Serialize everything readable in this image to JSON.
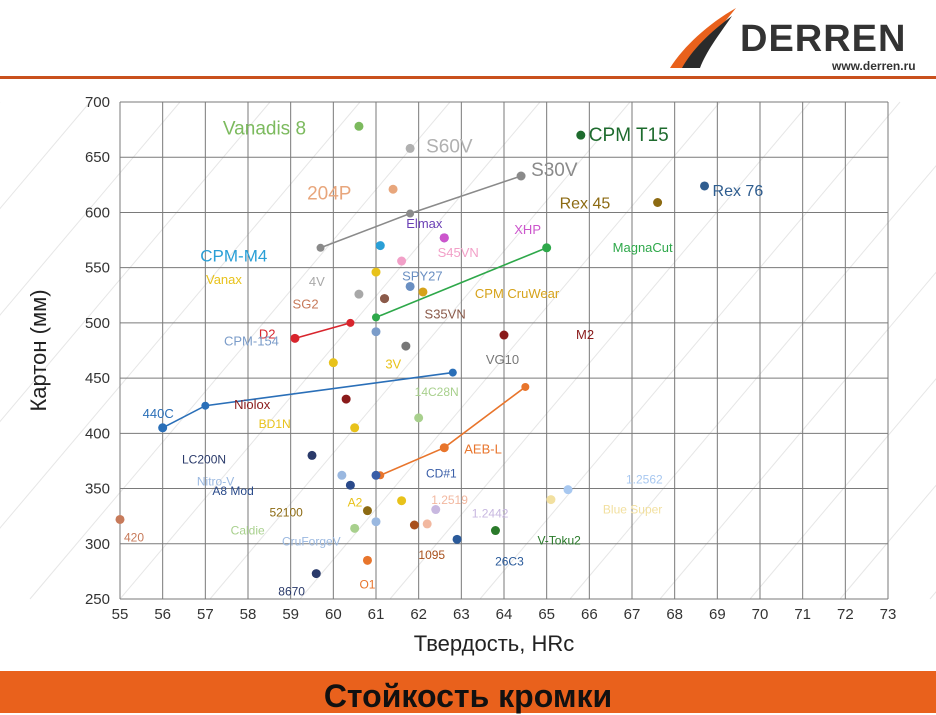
{
  "brand": {
    "name": "DERREN",
    "url": "www.derren.ru",
    "accent": "#c9501c",
    "logo_icon": "derren-swoosh-logo"
  },
  "footer": {
    "title": "Стойкость кромки",
    "band_color": "#e9611c"
  },
  "chart_data": {
    "type": "scatter",
    "title": "",
    "xlabel": "Твердость, HRc",
    "ylabel": "Картон (мм)",
    "xlim": [
      55,
      73
    ],
    "ylim": [
      250,
      700
    ],
    "xticks": [
      55,
      56,
      57,
      58,
      59,
      60,
      61,
      62,
      63,
      64,
      65,
      66,
      67,
      68,
      69,
      70,
      71,
      72,
      73
    ],
    "yticks": [
      250,
      300,
      350,
      400,
      450,
      500,
      550,
      600,
      650,
      700
    ],
    "grid": true,
    "points": [
      {
        "name": "Vanadis 8",
        "x": 60.6,
        "y": 678,
        "color": "#7cba5e",
        "size": 26
      },
      {
        "name": "S60V",
        "x": 61.8,
        "y": 658,
        "color": "#b0b0b0",
        "size": 26
      },
      {
        "name": "CPM T15",
        "x": 65.8,
        "y": 670,
        "color": "#1e6b2e",
        "size": 26
      },
      {
        "name": "204P",
        "x": 61.4,
        "y": 621,
        "color": "#e8a67c",
        "size": 26
      },
      {
        "name": "S30V",
        "x": 64.4,
        "y": 633,
        "color": "#8a8a8a",
        "size": 26
      },
      {
        "name": "Rex 45",
        "x": 67.6,
        "y": 609,
        "color": "#8c6a12",
        "size": 22
      },
      {
        "name": "Rex 76",
        "x": 68.7,
        "y": 624,
        "color": "#2f5d8f",
        "size": 22
      },
      {
        "name": "Elmax",
        "x": 62.6,
        "y": 577,
        "color": "#6a3fb5",
        "size": 18
      },
      {
        "name": "XHP",
        "x": 62.6,
        "y": 577,
        "color": "#cc55cc",
        "size": 18
      },
      {
        "name": "S45VN",
        "x": 61.6,
        "y": 556,
        "color": "#f2a0c8",
        "size": 18
      },
      {
        "name": "MagnaCut",
        "x": 65.0,
        "y": 568,
        "color": "#2ea84a",
        "size": 18
      },
      {
        "name": "CPM-M4",
        "x": 61.1,
        "y": 570,
        "color": "#2a9fd6",
        "size": 24
      },
      {
        "name": "Vanax",
        "x": 61.0,
        "y": 546,
        "color": "#e8c21a",
        "size": 18
      },
      {
        "name": "SPY27",
        "x": 61.8,
        "y": 533,
        "color": "#6a8fc2",
        "size": 18
      },
      {
        "name": "4V",
        "x": 60.6,
        "y": 526,
        "color": "#a8a8a8",
        "size": 18
      },
      {
        "name": "CPM CruWear",
        "x": 62.1,
        "y": 528,
        "color": "#d6a21a",
        "size": 18
      },
      {
        "name": "SG2",
        "x": 61.2,
        "y": 522,
        "color": "#c77a5a",
        "size": 18
      },
      {
        "name": "S35VN",
        "x": 61.2,
        "y": 522,
        "color": "#8a5a4a",
        "size": 18
      },
      {
        "name": "D2",
        "x": 59.1,
        "y": 486,
        "color": "#d8252d",
        "size": 18
      },
      {
        "name": "M2",
        "x": 64.0,
        "y": 489,
        "color": "#8a1a1a",
        "size": 18
      },
      {
        "name": "CPM-154",
        "x": 61.0,
        "y": 492,
        "color": "#7b9cc9",
        "size": 18
      },
      {
        "name": "3V",
        "x": 60.0,
        "y": 464,
        "color": "#e8c21a",
        "size": 18
      },
      {
        "name": "VG10",
        "x": 61.7,
        "y": 479,
        "color": "#777777",
        "size": 18
      },
      {
        "name": "440C",
        "x": 56.0,
        "y": 405,
        "color": "#2a6fb8",
        "size": 18
      },
      {
        "name": "14C28N",
        "x": 62.0,
        "y": 414,
        "color": "#a8d08d",
        "size": 16
      },
      {
        "name": "Niolox",
        "x": 60.3,
        "y": 431,
        "color": "#8a1a1a",
        "size": 18
      },
      {
        "name": "BD1N",
        "x": 60.5,
        "y": 405,
        "color": "#e8c21a",
        "size": 16
      },
      {
        "name": "AEB-L",
        "x": 62.6,
        "y": 387,
        "color": "#e8752c",
        "size": 18
      },
      {
        "name": "LC200N",
        "x": 59.5,
        "y": 380,
        "color": "#2a3a6a",
        "size": 16
      },
      {
        "name": "Nitro-V",
        "x": 60.2,
        "y": 362,
        "color": "#9ab8e0",
        "size": 16
      },
      {
        "name": "CD#1",
        "x": 61.0,
        "y": 362,
        "color": "#3a5ea8",
        "size": 16
      },
      {
        "name": "A8 Mod",
        "x": 60.4,
        "y": 353,
        "color": "#2a4a8a",
        "size": 16
      },
      {
        "name": "A2",
        "x": 61.6,
        "y": 339,
        "color": "#e8c21a",
        "size": 16
      },
      {
        "name": "1.2519",
        "x": 62.2,
        "y": 318,
        "color": "#f2b8a0",
        "size": 16
      },
      {
        "name": "1.2562",
        "x": 65.5,
        "y": 349,
        "color": "#a8c8f0",
        "size": 16
      },
      {
        "name": "52100",
        "x": 60.8,
        "y": 330,
        "color": "#8c6a12",
        "size": 16
      },
      {
        "name": "1.2442",
        "x": 62.4,
        "y": 331,
        "color": "#c8b8e0",
        "size": 16
      },
      {
        "name": "Blue Super",
        "x": 65.1,
        "y": 340,
        "color": "#f2e0a0",
        "size": 16
      },
      {
        "name": "Caldie",
        "x": 60.5,
        "y": 314,
        "color": "#a8d08d",
        "size": 16
      },
      {
        "name": "CruForgeV",
        "x": 61.0,
        "y": 320,
        "color": "#9ab8e0",
        "size": 16
      },
      {
        "name": "1095",
        "x": 61.9,
        "y": 317,
        "color": "#a8501c",
        "size": 16
      },
      {
        "name": "V-Toku2",
        "x": 63.8,
        "y": 312,
        "color": "#2a7a2a",
        "size": 16
      },
      {
        "name": "26C3",
        "x": 62.9,
        "y": 304,
        "color": "#2a5a9a",
        "size": 16
      },
      {
        "name": "O1",
        "x": 60.8,
        "y": 285,
        "color": "#e8752c",
        "size": 16
      },
      {
        "name": "8670",
        "x": 59.6,
        "y": 273,
        "color": "#2a3a6a",
        "size": 16
      },
      {
        "name": "420",
        "x": 55.0,
        "y": 322,
        "color": "#c77a5a",
        "size": 16
      }
    ],
    "ranges": [
      {
        "series": "S30V",
        "x": [
          59.7,
          61.8,
          64.4
        ],
        "y": [
          568,
          599,
          633
        ],
        "color": "#8a8a8a"
      },
      {
        "series": "MagnaCut",
        "x": [
          61.0,
          65.0
        ],
        "y": [
          505,
          568
        ],
        "color": "#2ea84a"
      },
      {
        "series": "D2",
        "x": [
          59.1,
          60.4
        ],
        "y": [
          486,
          500
        ],
        "color": "#d8252d"
      },
      {
        "series": "440C",
        "x": [
          56.0,
          57.0,
          62.8
        ],
        "y": [
          405,
          425,
          455
        ],
        "color": "#2a6fb8"
      },
      {
        "series": "AEB-L",
        "x": [
          61.1,
          62.6,
          64.5
        ],
        "y": [
          362,
          387,
          442
        ],
        "color": "#e8752c"
      }
    ]
  }
}
